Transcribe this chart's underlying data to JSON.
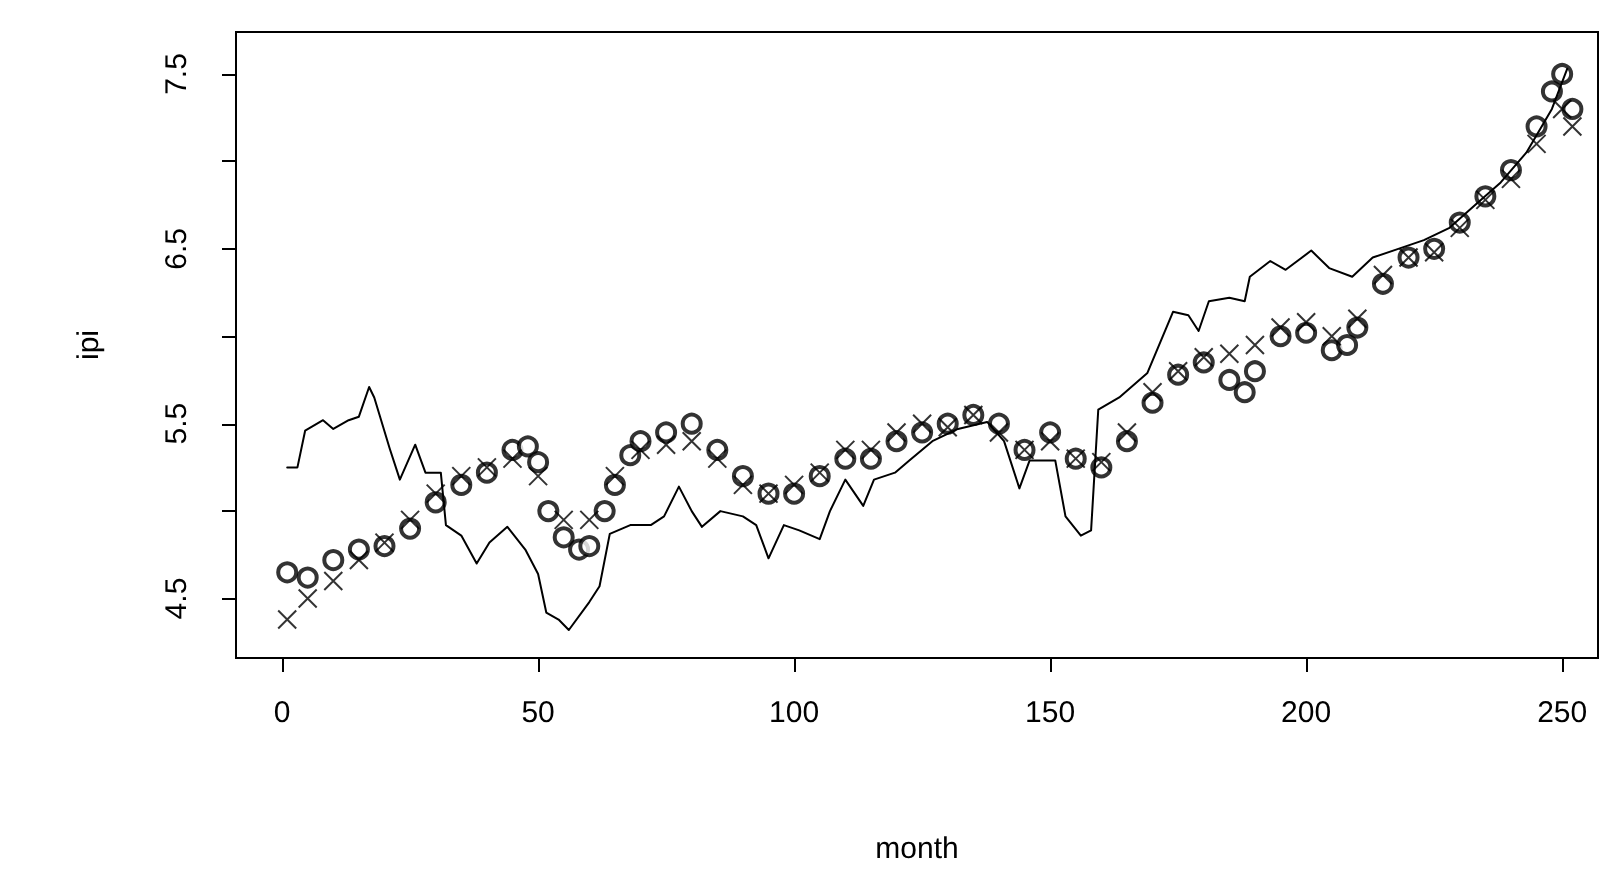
{
  "chart_data": {
    "type": "line",
    "xlabel": "month",
    "ylabel": "ipi",
    "xlim": [
      -9,
      257
    ],
    "ylim": [
      4.16,
      7.74
    ],
    "xticks": [
      0,
      50,
      100,
      150,
      200,
      250
    ],
    "yticks": [
      4.5,
      {
        "value": 5,
        "label": null
      },
      5.5,
      {
        "value": 6,
        "label": null
      },
      6.5,
      {
        "value": 7,
        "label": null
      },
      7.5
    ],
    "grid": false,
    "series": [
      {
        "type": "scatter",
        "marker": "circle",
        "color": "#000000",
        "x": [
          1,
          5,
          10,
          15,
          20,
          25,
          30,
          35,
          40,
          45,
          48,
          50,
          52,
          55,
          58,
          60,
          63,
          65,
          68,
          70,
          75,
          80,
          85,
          90,
          95,
          100,
          105,
          110,
          115,
          120,
          125,
          130,
          135,
          140,
          145,
          150,
          155,
          160,
          165,
          170,
          175,
          180,
          185,
          188,
          190,
          195,
          200,
          205,
          208,
          210,
          215,
          220,
          225,
          230,
          235,
          240,
          245,
          248,
          250,
          252
        ],
        "values": [
          4.65,
          4.62,
          4.72,
          4.78,
          4.8,
          4.9,
          5.05,
          5.15,
          5.22,
          5.35,
          5.37,
          5.28,
          5.0,
          4.85,
          4.78,
          4.8,
          5.0,
          5.15,
          5.32,
          5.4,
          5.45,
          5.5,
          5.35,
          5.2,
          5.1,
          5.1,
          5.2,
          5.3,
          5.3,
          5.4,
          5.45,
          5.5,
          5.55,
          5.5,
          5.35,
          5.45,
          5.3,
          5.25,
          5.4,
          5.62,
          5.78,
          5.85,
          5.75,
          5.68,
          5.8,
          6.0,
          6.02,
          5.92,
          5.95,
          6.05,
          6.3,
          6.45,
          6.5,
          6.65,
          6.8,
          6.95,
          7.2,
          7.4,
          7.5,
          7.3
        ]
      },
      {
        "type": "scatter",
        "marker": "cross",
        "color": "#000000",
        "x": [
          1,
          5,
          10,
          15,
          20,
          25,
          30,
          35,
          40,
          45,
          50,
          55,
          60,
          65,
          70,
          75,
          80,
          85,
          90,
          95,
          100,
          105,
          110,
          115,
          120,
          125,
          130,
          135,
          140,
          145,
          150,
          155,
          160,
          165,
          170,
          175,
          180,
          185,
          190,
          195,
          200,
          205,
          210,
          215,
          220,
          225,
          230,
          235,
          240,
          245,
          250,
          252
        ],
        "values": [
          4.38,
          4.5,
          4.6,
          4.72,
          4.82,
          4.95,
          5.1,
          5.2,
          5.25,
          5.3,
          5.2,
          4.95,
          4.95,
          5.2,
          5.35,
          5.38,
          5.4,
          5.3,
          5.15,
          5.1,
          5.15,
          5.22,
          5.35,
          5.35,
          5.45,
          5.5,
          5.48,
          5.55,
          5.45,
          5.35,
          5.4,
          5.3,
          5.28,
          5.45,
          5.68,
          5.8,
          5.88,
          5.9,
          5.95,
          6.05,
          6.08,
          6.0,
          6.1,
          6.35,
          6.45,
          6.48,
          6.62,
          6.78,
          6.9,
          7.1,
          7.3,
          7.2
        ]
      },
      {
        "marker": "none",
        "color": "#000000",
        "x": [
          1,
          3,
          4.5,
          8,
          10,
          13,
          15,
          17,
          18,
          21,
          23,
          26,
          28,
          31,
          32,
          35,
          38,
          40.5,
          44,
          47.5,
          50,
          51.6,
          54,
          56,
          60,
          62,
          64,
          68,
          72,
          74.6,
          77.5,
          80,
          82,
          85.6,
          90,
          92.6,
          95,
          98,
          101,
          105,
          107,
          110,
          113.5,
          115.6,
          119.7,
          122.5,
          127,
          132,
          137.7,
          141,
          144,
          146,
          151,
          153,
          156,
          158,
          159.4,
          163.5,
          169,
          174,
          177,
          179,
          181,
          185,
          188,
          189,
          193,
          196,
          201,
          204.5,
          209,
          213,
          218,
          223,
          228,
          233,
          238,
          243,
          248,
          251
        ],
        "values": [
          5.25,
          5.25,
          5.46,
          5.52,
          5.47,
          5.52,
          5.54,
          5.71,
          5.65,
          5.36,
          5.18,
          5.38,
          5.22,
          5.22,
          4.92,
          4.86,
          4.7,
          4.82,
          4.91,
          4.78,
          4.64,
          4.42,
          4.38,
          4.32,
          4.48,
          4.57,
          4.87,
          4.92,
          4.92,
          4.97,
          5.14,
          5.0,
          4.91,
          5.0,
          4.97,
          4.92,
          4.73,
          4.92,
          4.89,
          4.84,
          5.0,
          5.18,
          5.03,
          5.18,
          5.22,
          5.29,
          5.4,
          5.47,
          5.51,
          5.4,
          5.13,
          5.29,
          5.29,
          4.97,
          4.86,
          4.89,
          5.58,
          5.65,
          5.79,
          6.14,
          6.12,
          6.03,
          6.2,
          6.22,
          6.2,
          6.34,
          6.43,
          6.38,
          6.49,
          6.39,
          6.34,
          6.45,
          6.5,
          6.55,
          6.62,
          6.75,
          6.88,
          7.05,
          7.3,
          7.53
        ]
      }
    ]
  }
}
